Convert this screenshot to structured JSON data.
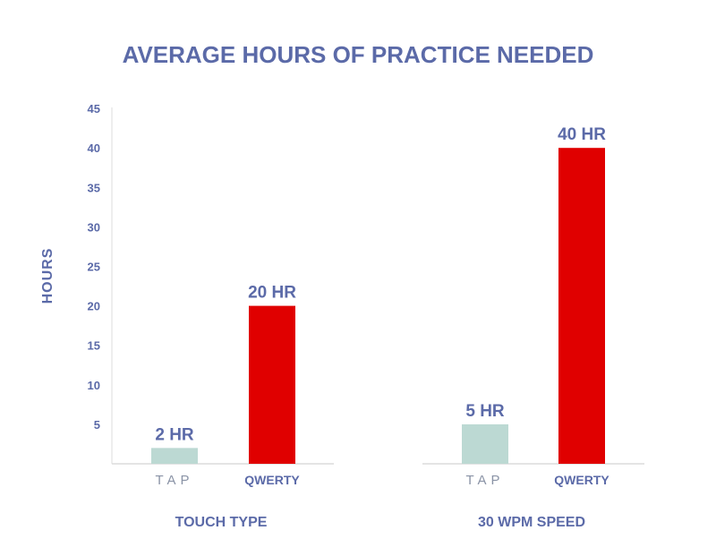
{
  "chart_data": {
    "type": "bar",
    "title": "AVERAGE HOURS OF PRACTICE NEEDED",
    "ylabel": "HOURS",
    "ylim": [
      0,
      45
    ],
    "yticks": [
      "5",
      "10",
      "15",
      "20",
      "25",
      "30",
      "35",
      "40",
      "45"
    ],
    "grid": false,
    "groups": [
      {
        "name": "TOUCH TYPE",
        "bars": [
          {
            "category": "TAP",
            "value": 2,
            "label": "2 HR",
            "color": "#bcd9d3"
          },
          {
            "category": "QWERTY",
            "value": 20,
            "label": "20 HR",
            "color": "#e00000"
          }
        ]
      },
      {
        "name": "30 WPM SPEED",
        "bars": [
          {
            "category": "TAP",
            "value": 5,
            "label": "5 HR",
            "color": "#bcd9d3"
          },
          {
            "category": "QWERTY",
            "value": 40,
            "label": "40 HR",
            "color": "#e00000"
          }
        ]
      }
    ],
    "colors": {
      "text": "#5b6aa8",
      "axis": "#dcdcdc",
      "tap_logo": "#8a93a6"
    }
  }
}
